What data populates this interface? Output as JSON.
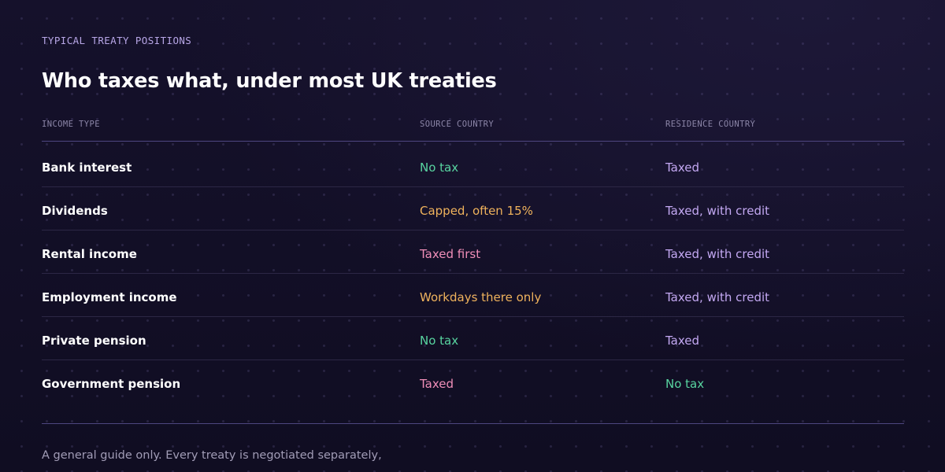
{
  "eyebrow": "TYPICAL TREATY POSITIONS",
  "title": "Who taxes what, under most UK treaties",
  "table": {
    "headers": [
      "INCOME TYPE",
      "SOURCE COUNTRY",
      "RESIDENCE COUNTRY"
    ],
    "rows": [
      {
        "type": "Bank interest",
        "source": "No tax",
        "source_tone": "green",
        "residence": "Taxed",
        "residence_tone": "purple"
      },
      {
        "type": "Dividends",
        "source": "Capped, often 15%",
        "source_tone": "orange",
        "residence": "Taxed, with credit",
        "residence_tone": "purple"
      },
      {
        "type": "Rental income",
        "source": "Taxed first",
        "source_tone": "pink",
        "residence": "Taxed, with credit",
        "residence_tone": "purple"
      },
      {
        "type": "Employment income",
        "source": "Workdays there only",
        "source_tone": "orange",
        "residence": "Taxed, with credit",
        "residence_tone": "purple"
      },
      {
        "type": "Private pension",
        "source": "No tax",
        "source_tone": "green",
        "residence": "Taxed",
        "residence_tone": "purple"
      },
      {
        "type": "Government pension",
        "source": "Taxed",
        "source_tone": "pink",
        "residence": "No tax",
        "residence_tone": "green"
      }
    ]
  },
  "footnote": "A general guide only. Every treaty is negotiated separately,",
  "colors": {
    "background": "#120f26",
    "green": "#58d4a0",
    "orange": "#efb25c",
    "pink": "#ef8eb8",
    "purple": "#c3a8f2",
    "eyebrow": "#b7a6e6"
  }
}
